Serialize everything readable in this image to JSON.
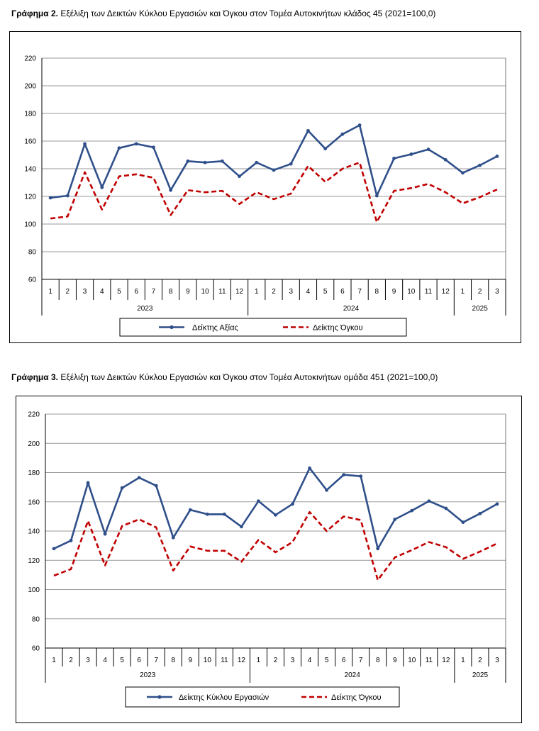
{
  "figures": [
    {
      "caption_label": "Γράφημα 2.",
      "caption_text": " Εξέλιξη των Δεικτών Κύκλου Εργασιών και Όγκου στον Τομέα Αυτοκινήτων κλάδος 45 (2021=100,0)"
    },
    {
      "caption_label": "Γράφημα 3.",
      "caption_text": " Εξέλιξη των Δεικτών Κύκλου Εργασιών και Όγκου στον Τομέα Αυτοκινήτων ομάδα 451 (2021=100,0)"
    }
  ],
  "colors": {
    "series1": "#2f4f8a",
    "series2": "#c00000",
    "grid": "#9a9a9a"
  },
  "chart_data": [
    {
      "type": "line",
      "title": "",
      "categories": [
        "1",
        "2",
        "3",
        "4",
        "5",
        "6",
        "7",
        "8",
        "9",
        "10",
        "11",
        "12",
        "1",
        "2",
        "3",
        "4",
        "5",
        "6",
        "7",
        "8",
        "9",
        "10",
        "11",
        "12",
        "1",
        "2",
        "3"
      ],
      "groups": [
        {
          "label": "2023",
          "count": 12
        },
        {
          "label": "2024",
          "count": 12
        },
        {
          "label": "2025",
          "count": 3
        }
      ],
      "ylim": [
        60,
        220
      ],
      "yticks": [
        60,
        80,
        100,
        120,
        140,
        160,
        180,
        200,
        220
      ],
      "grid": true,
      "legend_position": "bottom",
      "series": [
        {
          "name": "Δείκτης Αξίας",
          "style": "solid",
          "values": [
            119,
            120.5,
            158,
            126.5,
            155,
            158,
            155.5,
            124.5,
            145.5,
            144.5,
            145.5,
            134.5,
            144.5,
            139,
            143.5,
            167.5,
            154.5,
            165,
            171.5,
            120.5,
            147.5,
            150.5,
            154,
            146.5,
            137,
            142.5,
            149
          ]
        },
        {
          "name": "Δείκτης Όγκου",
          "style": "dashed",
          "values": [
            104,
            105.5,
            137.5,
            110.5,
            134.5,
            136,
            133.5,
            106.5,
            124.5,
            123,
            124,
            114.5,
            123,
            118,
            122,
            142,
            130.5,
            140,
            144.5,
            101.5,
            124,
            126,
            129,
            123,
            115,
            119.5,
            125
          ]
        }
      ]
    },
    {
      "type": "line",
      "title": "",
      "categories": [
        "1",
        "2",
        "3",
        "4",
        "5",
        "6",
        "7",
        "8",
        "9",
        "10",
        "11",
        "12",
        "1",
        "2",
        "3",
        "4",
        "5",
        "6",
        "7",
        "8",
        "9",
        "10",
        "11",
        "12",
        "1",
        "2",
        "3"
      ],
      "groups": [
        {
          "label": "2023",
          "count": 12
        },
        {
          "label": "2024",
          "count": 12
        },
        {
          "label": "2025",
          "count": 3
        }
      ],
      "ylim": [
        60,
        220
      ],
      "yticks": [
        60,
        80,
        100,
        120,
        140,
        160,
        180,
        200,
        220
      ],
      "grid": true,
      "legend_position": "bottom",
      "series": [
        {
          "name": "Δείκτης Κύκλου Εργασιών",
          "style": "solid",
          "values": [
            128,
            133.5,
            173,
            138,
            169.5,
            176.5,
            171,
            135.5,
            154.5,
            151.5,
            151.5,
            143,
            160.5,
            151,
            158.5,
            183,
            168,
            178.5,
            177.5,
            128,
            148,
            154,
            160.5,
            155.5,
            146,
            152,
            158.5
          ]
        },
        {
          "name": "Δείκτης Όγκου",
          "style": "dashed",
          "values": [
            109.5,
            114,
            147,
            116.5,
            143.5,
            148,
            142.5,
            113,
            129.5,
            126.5,
            126.5,
            119,
            134,
            125.5,
            132.5,
            153,
            140,
            150,
            147.5,
            106.5,
            122,
            127,
            132.5,
            129,
            121,
            126,
            131.5
          ]
        }
      ]
    }
  ]
}
